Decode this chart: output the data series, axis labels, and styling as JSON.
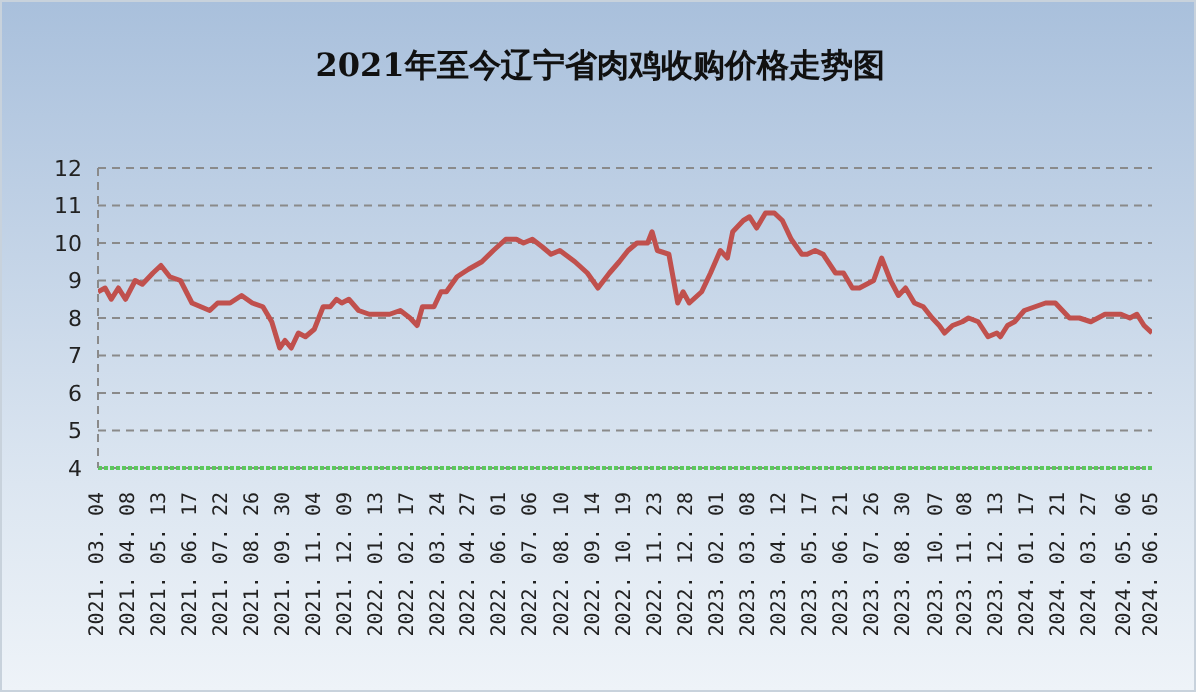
{
  "chart_data": {
    "type": "line",
    "title": "2021年至今辽宁省肉鸡收购价格走势图",
    "x": [
      "2021-03-04",
      "2021-03-12",
      "2021-03-19",
      "2021-03-27",
      "2021-04-04",
      "2021-04-15",
      "2021-04-23",
      "2021-05-05",
      "2021-05-14",
      "2021-05-24",
      "2021-06-05",
      "2021-06-18",
      "2021-07-08",
      "2021-07-17",
      "2021-07-31",
      "2021-08-13",
      "2021-08-25",
      "2021-09-06",
      "2021-09-16",
      "2021-09-25",
      "2021-10-01",
      "2021-10-08",
      "2021-10-16",
      "2021-10-24",
      "2021-11-03",
      "2021-11-13",
      "2021-11-21",
      "2021-11-28",
      "2021-12-04",
      "2021-12-12",
      "2021-12-23",
      "2022-01-04",
      "2022-01-15",
      "2022-01-27",
      "2022-02-08",
      "2022-02-19",
      "2022-02-27",
      "2022-03-05",
      "2022-03-18",
      "2022-03-26",
      "2022-04-01",
      "2022-04-13",
      "2022-04-26",
      "2022-05-11",
      "2022-05-24",
      "2022-06-07",
      "2022-06-19",
      "2022-06-27",
      "2022-07-07",
      "2022-07-18",
      "2022-07-28",
      "2022-08-07",
      "2022-08-24",
      "2022-09-07",
      "2022-09-19",
      "2022-10-02",
      "2022-10-13",
      "2022-10-23",
      "2022-11-02",
      "2022-11-14",
      "2022-11-19",
      "2022-11-25",
      "2022-12-08",
      "2022-12-18",
      "2022-12-24",
      "2022-12-31",
      "2023-01-14",
      "2023-01-24",
      "2023-02-04",
      "2023-02-12",
      "2023-02-18",
      "2023-03-02",
      "2023-03-09",
      "2023-03-17",
      "2023-03-27",
      "2023-04-06",
      "2023-04-15",
      "2023-04-25",
      "2023-05-07",
      "2023-05-13",
      "2023-05-22",
      "2023-05-31",
      "2023-06-14",
      "2023-06-23",
      "2023-07-03",
      "2023-07-11",
      "2023-07-19",
      "2023-07-27",
      "2023-08-05",
      "2023-08-15",
      "2023-08-24",
      "2023-09-01",
      "2023-09-11",
      "2023-09-21",
      "2023-10-01",
      "2023-10-09",
      "2023-10-15",
      "2023-10-24",
      "2023-11-04",
      "2023-11-11",
      "2023-11-22",
      "2023-12-03",
      "2023-12-13",
      "2023-12-17",
      "2023-12-25",
      "2024-01-02",
      "2024-01-13",
      "2024-01-25",
      "2024-02-06",
      "2024-02-17",
      "2024-03-04",
      "2024-03-15",
      "2024-03-28",
      "2024-04-13",
      "2024-05-01",
      "2024-05-11",
      "2024-05-19",
      "2024-05-27",
      "2024-06-05"
    ],
    "series": [
      {
        "color": "#c0504d",
        "values": [
          8.7,
          8.8,
          8.5,
          8.8,
          8.5,
          9.0,
          8.9,
          9.2,
          9.4,
          9.1,
          9.0,
          8.4,
          8.2,
          8.4,
          8.4,
          8.6,
          8.4,
          8.3,
          7.9,
          7.2,
          7.4,
          7.2,
          7.6,
          7.5,
          7.7,
          8.3,
          8.3,
          8.5,
          8.4,
          8.5,
          8.2,
          8.1,
          8.1,
          8.1,
          8.2,
          8.0,
          7.8,
          8.3,
          8.3,
          8.7,
          8.7,
          9.1,
          9.3,
          9.5,
          9.8,
          10.1,
          10.1,
          10.0,
          10.1,
          9.9,
          9.7,
          9.8,
          9.5,
          9.2,
          8.8,
          9.2,
          9.5,
          9.8,
          10.0,
          10.0,
          10.3,
          9.8,
          9.7,
          8.4,
          8.7,
          8.4,
          8.7,
          9.2,
          9.8,
          9.6,
          10.3,
          10.6,
          10.7,
          10.4,
          10.8,
          10.8,
          10.6,
          10.1,
          9.7,
          9.7,
          9.8,
          9.7,
          9.2,
          9.2,
          8.8,
          8.8,
          8.9,
          9.0,
          9.6,
          9.0,
          8.6,
          8.8,
          8.4,
          8.3,
          8.0,
          7.8,
          7.6,
          7.8,
          7.9,
          8.0,
          7.9,
          7.5,
          7.6,
          7.5,
          7.8,
          7.9,
          8.2,
          8.3,
          8.4,
          8.4,
          8.0,
          8.0,
          7.9,
          8.1,
          8.1,
          8.0,
          8.1,
          7.8,
          7.6
        ]
      }
    ],
    "xlim": [
      "2021-03-04",
      "2024-06-05"
    ],
    "xticks": [
      {
        "value": "2021-03-04",
        "label": "2021. 03. 04"
      },
      {
        "value": "2021-04-08",
        "label": "2021. 04. 08"
      },
      {
        "value": "2021-05-13",
        "label": "2021. 05. 13"
      },
      {
        "value": "2021-06-17",
        "label": "2021. 06. 17"
      },
      {
        "value": "2021-07-22",
        "label": "2021. 07. 22"
      },
      {
        "value": "2021-08-26",
        "label": "2021. 08. 26"
      },
      {
        "value": "2021-09-30",
        "label": "2021. 09. 30"
      },
      {
        "value": "2021-11-04",
        "label": "2021. 11. 04"
      },
      {
        "value": "2021-12-09",
        "label": "2021. 12. 09"
      },
      {
        "value": "2022-01-13",
        "label": "2022. 01. 13"
      },
      {
        "value": "2022-02-17",
        "label": "2022. 02. 17"
      },
      {
        "value": "2022-03-24",
        "label": "2022. 03. 24"
      },
      {
        "value": "2022-04-27",
        "label": "2022. 04. 27"
      },
      {
        "value": "2022-06-01",
        "label": "2022. 06. 01"
      },
      {
        "value": "2022-07-06",
        "label": "2022. 07. 06"
      },
      {
        "value": "2022-08-10",
        "label": "2022. 08. 10"
      },
      {
        "value": "2022-09-14",
        "label": "2022. 09. 14"
      },
      {
        "value": "2022-10-19",
        "label": "2022. 10. 19"
      },
      {
        "value": "2022-11-23",
        "label": "2022. 11. 23"
      },
      {
        "value": "2022-12-28",
        "label": "2022. 12. 28"
      },
      {
        "value": "2023-02-01",
        "label": "2023. 02. 01"
      },
      {
        "value": "2023-03-08",
        "label": "2023. 03. 08"
      },
      {
        "value": "2023-04-12",
        "label": "2023. 04. 12"
      },
      {
        "value": "2023-05-17",
        "label": "2023. 05. 17"
      },
      {
        "value": "2023-06-21",
        "label": "2023. 06. 21"
      },
      {
        "value": "2023-07-26",
        "label": "2023. 07. 26"
      },
      {
        "value": "2023-08-30",
        "label": "2023. 08. 30"
      },
      {
        "value": "2023-10-07",
        "label": "2023. 10. 07"
      },
      {
        "value": "2023-11-08",
        "label": "2023. 11. 08"
      },
      {
        "value": "2023-12-13",
        "label": "2023. 12. 13"
      },
      {
        "value": "2024-01-17",
        "label": "2024. 01. 17"
      },
      {
        "value": "2024-02-21",
        "label": "2024. 02. 21"
      },
      {
        "value": "2024-03-27",
        "label": "2024. 03. 27"
      },
      {
        "value": "2024-05-06",
        "label": "2024. 05. 06"
      },
      {
        "value": "2024-06-05",
        "label": "2024. 06. 05"
      }
    ],
    "ylim": [
      4,
      12
    ],
    "yticks": [
      4,
      5,
      6,
      7,
      8,
      9,
      10,
      11,
      12
    ],
    "grid": "y",
    "marker": "none",
    "line_style": "solid"
  }
}
